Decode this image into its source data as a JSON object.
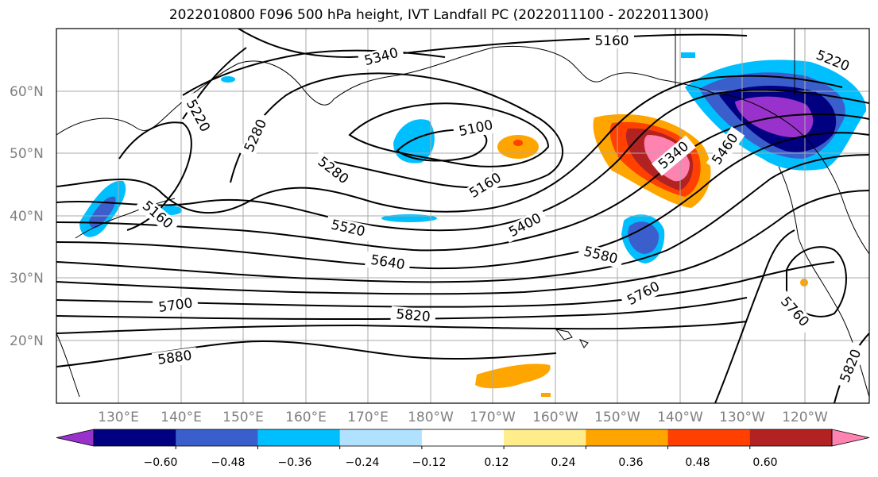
{
  "title": "2022010800 F096 500 hPa height, IVT Landfall PC (2022011100 - 2022011300)",
  "lat_labels": [
    "60°N",
    "50°N",
    "40°N",
    "30°N",
    "20°N"
  ],
  "lon_labels": [
    "130°E",
    "140°E",
    "150°E",
    "160°E",
    "170°E",
    "180°W",
    "170°W",
    "160°W",
    "150°W",
    "140°W",
    "130°W",
    "120°W"
  ],
  "contour_labels": [
    "5160",
    "5340",
    "5220",
    "5280",
    "5100",
    "5280",
    "5160",
    "5400",
    "5520",
    "5640",
    "5580",
    "5340",
    "5460",
    "5220",
    "5160",
    "5700",
    "5760",
    "5820",
    "5880",
    "5760",
    "5820"
  ],
  "colorbar": {
    "ticks": [
      "−0.60",
      "−0.48",
      "−0.36",
      "−0.24",
      "−0.12",
      "0.12",
      "0.24",
      "0.36",
      "0.48",
      "0.60"
    ],
    "colors": [
      "#9932CC",
      "#000080",
      "#3A5FCD",
      "#00BFFF",
      "#B0E2FF",
      "#FFFFFF",
      "#FFEC8B",
      "#FFA500",
      "#FF4000",
      "#B22222",
      "#FF83B0"
    ]
  }
}
